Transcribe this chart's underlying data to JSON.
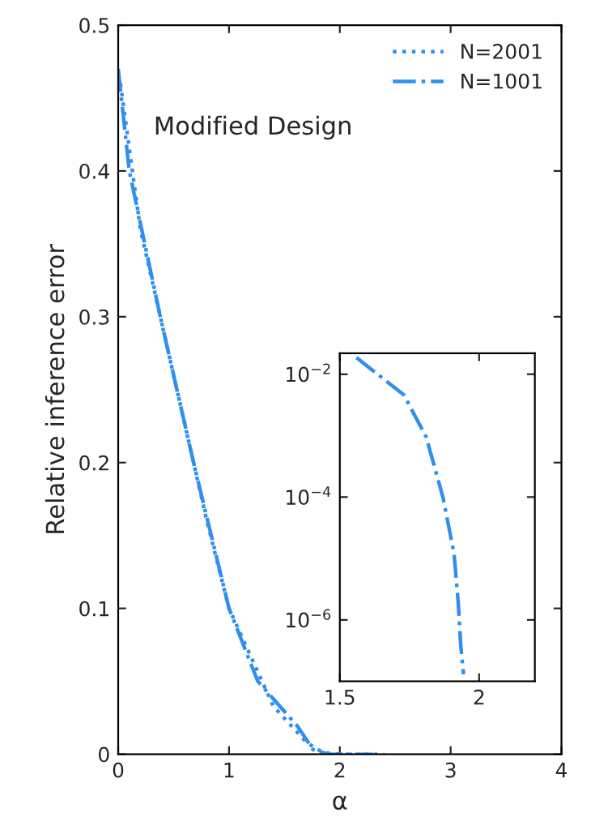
{
  "chart_data": [
    {
      "type": "line",
      "xlabel": "α",
      "ylabel": "Relative inference error",
      "annotations": [
        "Modified Design"
      ],
      "xlim": [
        0,
        4
      ],
      "ylim": [
        0,
        0.5
      ],
      "xticks": [
        0,
        1,
        2,
        3,
        4
      ],
      "yticks": [
        0,
        0.1,
        0.2,
        0.3,
        0.4,
        0.5
      ],
      "legend": "top right",
      "grid": false,
      "series": [
        {
          "name": "N=2001",
          "color": "#2f8ff0",
          "line_style": "dotted",
          "x": [
            0.02,
            0.2,
            0.5,
            0.8,
            1.0,
            1.4,
            1.7,
            1.85,
            2.0,
            2.4
          ],
          "values": [
            0.46,
            0.36,
            0.26,
            0.16,
            0.1,
            0.033,
            0.008,
            0.001,
            0,
            0
          ]
        },
        {
          "name": "N=1001",
          "color": "#2f8ff0",
          "line_style": "dashdot",
          "x": [
            0,
            0.1,
            0.38,
            0.68,
            1.0,
            1.26,
            1.62,
            1.76,
            1.9,
            2.3
          ],
          "values": [
            0.47,
            0.4,
            0.3,
            0.2,
            0.1,
            0.05,
            0.019,
            0.003,
            0,
            0
          ]
        }
      ]
    },
    {
      "type": "line",
      "log": "y",
      "xlim": [
        1.5,
        2.2
      ],
      "ylim": [
        1e-07,
        0.022
      ],
      "xticks": [
        1.5,
        2
      ],
      "yticks": [
        {
          "value": 0.01,
          "label": "10$^{−2}$"
        },
        {
          "value": 0.0001,
          "label": "10$^{−4}$"
        },
        {
          "value": 1e-06,
          "label": "10$^{−6}$"
        }
      ],
      "grid": false,
      "series": [
        {
          "color": "#2f8ff0",
          "line_style": "dashdot",
          "x": [
            1.56,
            1.73,
            1.81,
            1.87,
            1.91,
            1.925,
            1.934,
            1.944
          ],
          "values": [
            0.0186,
            0.0046,
            0.00095,
            0.0001,
            1.2e-05,
            1.9e-06,
            3.9e-07,
            1.3e-07
          ]
        }
      ]
    }
  ]
}
